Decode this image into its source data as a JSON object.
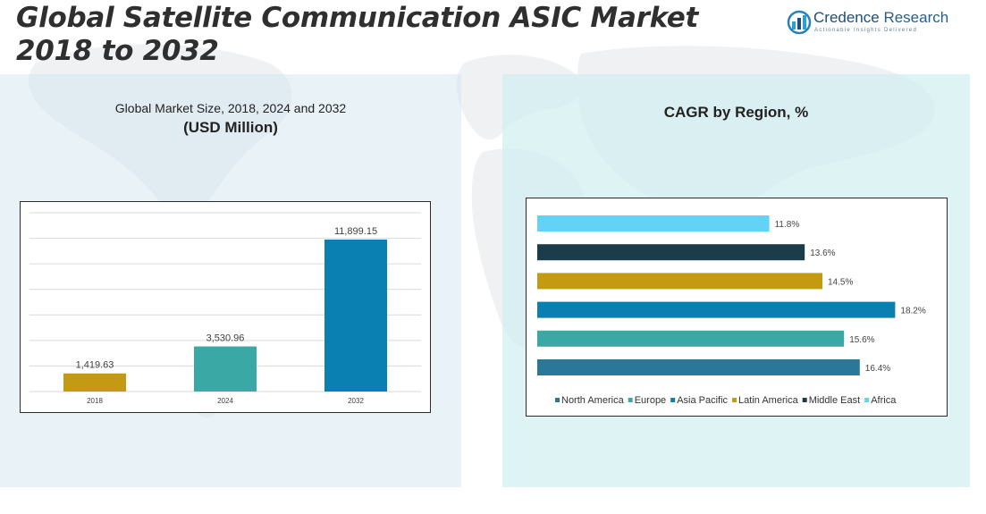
{
  "header": {
    "title_line1": "Global Satellite Communication ASIC Market",
    "title_line2": "2018 to 2032"
  },
  "logo": {
    "name_part1": "Credence",
    "name_part2": " Research",
    "tagline": "Actionable Insights Delivered",
    "icon": "credence-logo-icon"
  },
  "left_panel": {
    "subtitle": "Global Market Size, 2018, 2024 and 2032",
    "unit": "(USD Million)"
  },
  "right_panel": {
    "subtitle": "CAGR by Region, %"
  },
  "chart_data": [
    {
      "type": "bar",
      "title": "Global Market Size, 2018, 2024 and 2032",
      "ylabel": "(USD Million)",
      "categories": [
        "2018",
        "2024",
        "2032"
      ],
      "values": [
        1419.63,
        3530.96,
        11899.15
      ],
      "value_labels": [
        "1,419.63",
        "3,530.96",
        "11,899.15"
      ],
      "colors": [
        "#c49a12",
        "#3aa8a5",
        "#0a7fb1"
      ],
      "ylim": [
        0,
        14000
      ],
      "grid": true
    },
    {
      "type": "bar",
      "orientation": "horizontal",
      "title": "CAGR by Region, %",
      "categories": [
        "Africa",
        "Middle East",
        "Latin America",
        "Asia Pacific",
        "Europe",
        "North America"
      ],
      "values": [
        11.8,
        13.6,
        14.5,
        18.2,
        15.6,
        16.4
      ],
      "value_labels": [
        "11.8%",
        "13.6%",
        "14.5%",
        "18.2%",
        "15.6%",
        "16.4%"
      ],
      "colors": [
        "#64d2f6",
        "#1b3c4a",
        "#c49a12",
        "#0a7fb1",
        "#3aa8a5",
        "#2a7898"
      ],
      "xlim": [
        0,
        19
      ],
      "legend": {
        "placement": "bottom",
        "entries": [
          "North America",
          "Europe",
          "Asia Pacific",
          "Latin America",
          "Middle East",
          "Africa"
        ],
        "colors": [
          "#2a7898",
          "#3aa8a5",
          "#0a7fb1",
          "#c49a12",
          "#1b3c4a",
          "#64d2f6"
        ]
      }
    }
  ]
}
